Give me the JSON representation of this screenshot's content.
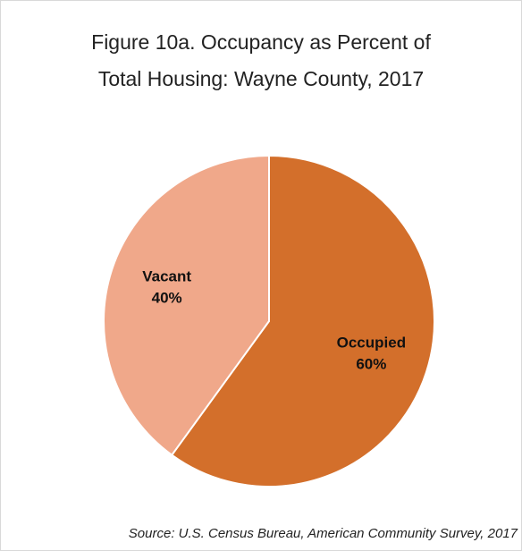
{
  "chart_data": {
    "type": "pie",
    "title": "Figure 10a. Occupancy as Percent of Total Housing: Wayne County, 2017",
    "categories": [
      "Occupied",
      "Vacant"
    ],
    "values": [
      60,
      40
    ],
    "value_labels": [
      "60%",
      "40%"
    ],
    "colors": [
      "#d36f2b",
      "#f0a88a"
    ],
    "source": "Source: U.S. Census Bureau, American Community Survey, 2017"
  }
}
